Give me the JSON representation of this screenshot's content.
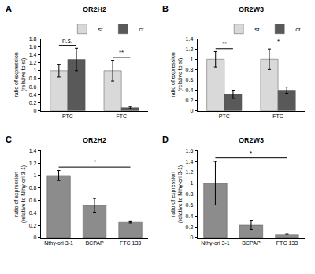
{
  "chart_data": [
    {
      "label": "A",
      "type": "bar",
      "title": "OR2H2",
      "ylabel": "ratio of expression\n(relative to st)",
      "categories": [
        "PTC",
        "FTC"
      ],
      "series": [
        {
          "name": "st",
          "color": "#d9d9d9",
          "values": [
            1.0,
            1.0
          ],
          "errors": [
            0.16,
            0.26
          ]
        },
        {
          "name": "ct",
          "color": "#595959",
          "values": [
            1.28,
            0.08
          ],
          "errors": [
            0.28,
            0.03
          ]
        }
      ],
      "ylim": [
        0,
        1.8
      ],
      "yticks": [
        0,
        0.2,
        0.4,
        0.6,
        0.8,
        1,
        1.2,
        1.4,
        1.6,
        1.8
      ],
      "grid": false,
      "legend": "top-right",
      "annotations": [
        {
          "category": "PTC",
          "text": "n.s."
        },
        {
          "category": "FTC",
          "text": "**"
        }
      ]
    },
    {
      "label": "B",
      "type": "bar",
      "title": "OR2W3",
      "ylabel": "ratio of expression\n(relative to st)",
      "categories": [
        "PTC",
        "FTC"
      ],
      "series": [
        {
          "name": "st",
          "color": "#d9d9d9",
          "values": [
            1.0,
            1.0
          ],
          "errors": [
            0.15,
            0.2
          ]
        },
        {
          "name": "ct",
          "color": "#595959",
          "values": [
            0.32,
            0.4
          ],
          "errors": [
            0.08,
            0.06
          ]
        }
      ],
      "ylim": [
        0,
        1.4
      ],
      "yticks": [
        0,
        0.2,
        0.4,
        0.6,
        0.8,
        1,
        1.2,
        1.4
      ],
      "grid": false,
      "legend": "top-right",
      "annotations": [
        {
          "category": "PTC",
          "text": "**"
        },
        {
          "category": "FTC",
          "text": "*"
        }
      ]
    },
    {
      "label": "C",
      "type": "bar",
      "title": "OR2H2",
      "ylabel": "ratio of expression\n(relative to Nthy-ori 3-1)",
      "categories": [
        "Nthy-ori 3-1",
        "BCPAP",
        "FTC 133"
      ],
      "values": [
        1.0,
        0.52,
        0.25
      ],
      "errors": [
        0.08,
        0.11,
        0.01
      ],
      "color": "#8c8c8c",
      "ylim": [
        0,
        1.4
      ],
      "yticks": [
        0,
        0.2,
        0.4,
        0.6,
        0.8,
        1,
        1.2,
        1.4
      ],
      "grid": false,
      "annotations": [
        {
          "from": "Nthy-ori 3-1",
          "to": "FTC 133",
          "text": "*"
        }
      ]
    },
    {
      "label": "D",
      "type": "bar",
      "title": "OR2W3",
      "ylabel": "ratio of expression\n(relative to Nthy-ori 3-1)",
      "categories": [
        "Nthy-ori 3-1",
        "BCPAP",
        "FTC 133"
      ],
      "values": [
        1.0,
        0.23,
        0.06
      ],
      "errors": [
        0.4,
        0.08,
        0.01
      ],
      "color": "#8c8c8c",
      "ylim": [
        0,
        1.6
      ],
      "yticks": [
        0,
        0.2,
        0.4,
        0.6,
        0.8,
        1,
        1.2,
        1.4,
        1.6
      ],
      "grid": false,
      "annotations": [
        {
          "from": "Nthy-ori 3-1",
          "to": "FTC 133",
          "text": "*"
        }
      ]
    }
  ]
}
